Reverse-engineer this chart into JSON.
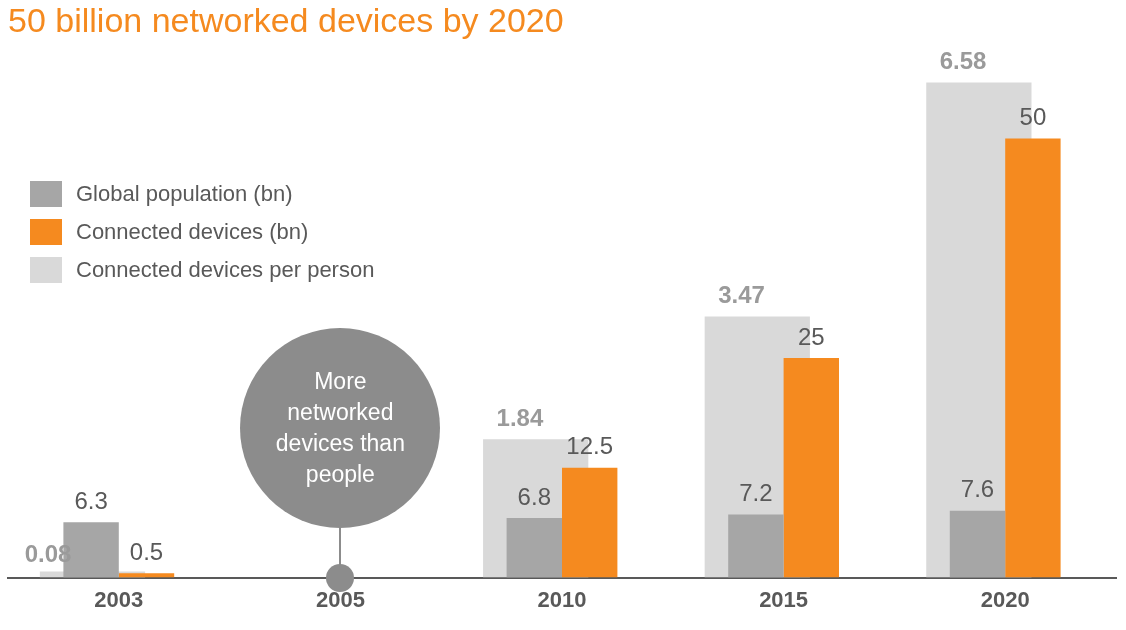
{
  "chart_data": {
    "type": "bar",
    "title": "50 billion networked devices by 2020",
    "categories": [
      "2003",
      "2005",
      "2010",
      "2015",
      "2020"
    ],
    "series": [
      {
        "name": "Global population (bn)",
        "color": "#a6a6a6",
        "values": [
          6.3,
          null,
          6.8,
          7.2,
          7.6
        ]
      },
      {
        "name": "Connected devices  (bn)",
        "color": "#f58a1f",
        "values": [
          0.5,
          null,
          12.5,
          25,
          50
        ]
      },
      {
        "name": "Connected devices per person",
        "color": "#d9d9d9",
        "axis": "y2",
        "values": [
          0.08,
          null,
          1.84,
          3.47,
          6.58
        ]
      }
    ],
    "tick_labels": "x",
    "grid": false,
    "legend": "top left",
    "data_labels": true,
    "annotations": [
      "More networked devices than people"
    ]
  }
}
